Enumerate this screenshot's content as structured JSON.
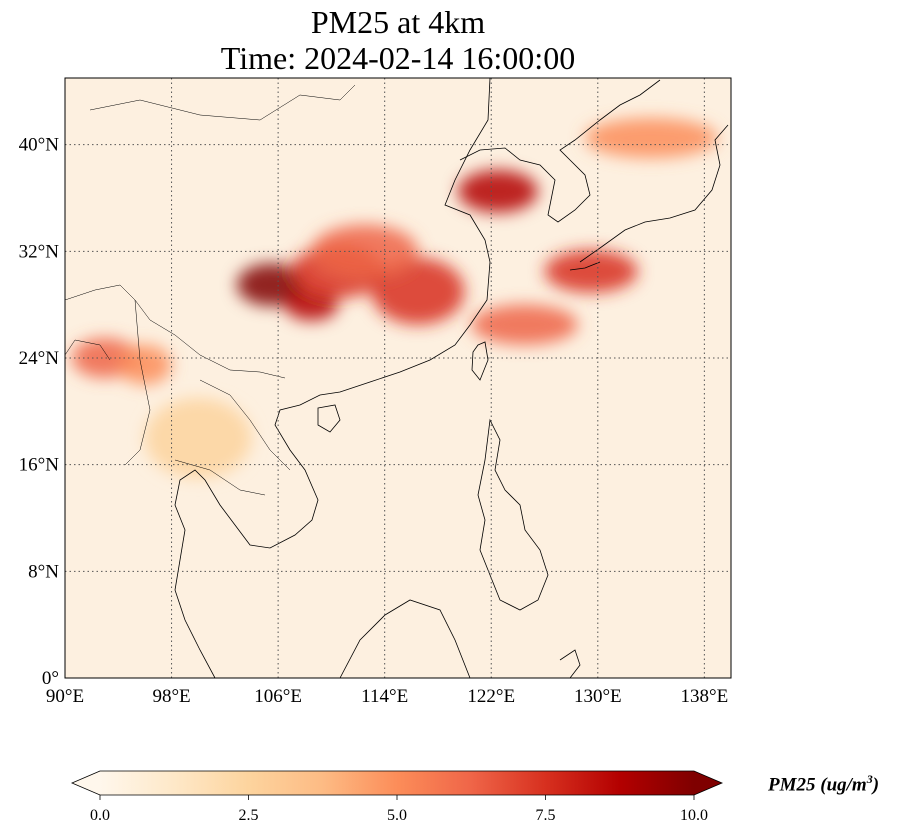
{
  "title": {
    "line1": "PM25 at 4km",
    "line2": "Time: 2024-02-14 16:00:00"
  },
  "map": {
    "projection": "PlateCarree",
    "extent": {
      "lon": [
        90,
        140
      ],
      "lat": [
        0,
        45
      ]
    },
    "lat_ticks": [
      {
        "value": 0,
        "label": "0°"
      },
      {
        "value": 8,
        "label": "8°N"
      },
      {
        "value": 16,
        "label": "16°N"
      },
      {
        "value": 24,
        "label": "24°N"
      },
      {
        "value": 32,
        "label": "32°N"
      },
      {
        "value": 40,
        "label": "40°N"
      }
    ],
    "lon_ticks": [
      {
        "value": 90,
        "label": "90°E"
      },
      {
        "value": 98,
        "label": "98°E"
      },
      {
        "value": 106,
        "label": "106°E"
      },
      {
        "value": 114,
        "label": "114°E"
      },
      {
        "value": 122,
        "label": "122°E"
      },
      {
        "value": 130,
        "label": "130°E"
      },
      {
        "value": 138,
        "label": "138°E"
      }
    ],
    "gridlines": "dotted",
    "field": "PM25",
    "plumes": [
      {
        "lon": 105.5,
        "lat": 29.5,
        "rx": 2.6,
        "ry": 1.6,
        "value": 10
      },
      {
        "lon": 108.5,
        "lat": 28.0,
        "rx": 2.0,
        "ry": 1.2,
        "value": 9
      },
      {
        "lon": 110.5,
        "lat": 30.5,
        "rx": 3.5,
        "ry": 2.0,
        "value": 7
      },
      {
        "lon": 116.5,
        "lat": 29.0,
        "rx": 3.5,
        "ry": 2.5,
        "value": 7
      },
      {
        "lon": 112.5,
        "lat": 32.0,
        "rx": 4.0,
        "ry": 2.0,
        "value": 6
      },
      {
        "lon": 122.5,
        "lat": 36.5,
        "rx": 3.0,
        "ry": 1.6,
        "value": 9
      },
      {
        "lon": 129.5,
        "lat": 30.5,
        "rx": 3.5,
        "ry": 1.6,
        "value": 7
      },
      {
        "lon": 124.5,
        "lat": 26.5,
        "rx": 4.0,
        "ry": 1.5,
        "value": 6
      },
      {
        "lon": 93.0,
        "lat": 24.0,
        "rx": 2.5,
        "ry": 1.5,
        "value": 6
      },
      {
        "lon": 96.0,
        "lat": 23.5,
        "rx": 2.0,
        "ry": 1.5,
        "value": 5
      },
      {
        "lon": 134.0,
        "lat": 40.5,
        "rx": 5.0,
        "ry": 1.5,
        "value": 5
      },
      {
        "lon": 100.0,
        "lat": 18.0,
        "rx": 4.0,
        "ry": 3.0,
        "value": 2
      }
    ]
  },
  "colorbar": {
    "cmap": "OrRd",
    "vmin": 0.0,
    "vmax": 10.0,
    "extend": "both",
    "ticks": [
      {
        "value": 0,
        "label": "0.0"
      },
      {
        "value": 2.5,
        "label": "2.5"
      },
      {
        "value": 5,
        "label": "5.0"
      },
      {
        "value": 7.5,
        "label": "7.5"
      },
      {
        "value": 10,
        "label": "10.0"
      }
    ],
    "label_text": "PM25 (ug/m",
    "label_exp": "3",
    "label_close": ")",
    "colors": [
      "#fff7ec",
      "#fee8c8",
      "#fdd49e",
      "#fdbb84",
      "#fc8d59",
      "#ef6548",
      "#d7301f",
      "#b30000",
      "#7f0000"
    ]
  }
}
